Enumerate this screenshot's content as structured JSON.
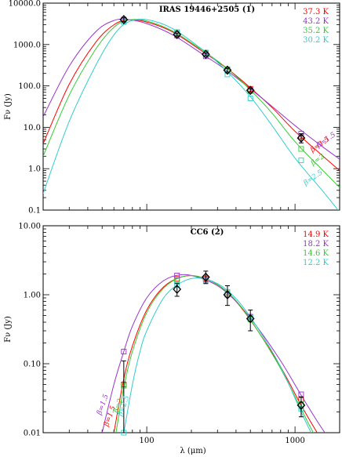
{
  "chart_data": [
    {
      "type": "line",
      "title": "IRAS 19446+2505 (1)",
      "ylabel": "Fν (Jy)",
      "xlabel": "",
      "xscale": "log",
      "yscale": "log",
      "xlim": [
        20,
        2000
      ],
      "ylim": [
        0.1,
        10000
      ],
      "yticks": [
        "0.1",
        "1.0",
        "10.0",
        "100.0",
        "1000.0",
        "10000.0"
      ],
      "legend_position": "top-right",
      "legend": [
        {
          "label": "37.3 K",
          "color": "#ff0000"
        },
        {
          "label": "43.2 K",
          "color": "#9933cc"
        },
        {
          "label": "35.2 K",
          "color": "#33cc33"
        },
        {
          "label": "30.2 K",
          "color": "#33cccc"
        }
      ],
      "series": [
        {
          "color": "#ff0000",
          "x": [
            20,
            30,
            45,
            60,
            75,
            100,
            150,
            250,
            350,
            500,
            700,
            1000,
            1500,
            2000
          ],
          "y": [
            4,
            110,
            1100,
            3000,
            3900,
            3500,
            2000,
            600,
            260,
            90,
            30,
            8,
            2.2,
            0.9
          ]
        },
        {
          "color": "#9933cc",
          "x": [
            20,
            30,
            45,
            60,
            75,
            100,
            150,
            250,
            350,
            500,
            700,
            1000,
            1500,
            2000
          ],
          "y": [
            18,
            300,
            2000,
            3800,
            4000,
            3200,
            1700,
            520,
            230,
            85,
            32,
            11,
            3.6,
            1.7
          ]
        },
        {
          "color": "#33cc33",
          "x": [
            20,
            30,
            45,
            60,
            75,
            100,
            150,
            250,
            350,
            500,
            700,
            1000,
            1500,
            2000
          ],
          "y": [
            2,
            60,
            750,
            2600,
            3900,
            3700,
            2100,
            640,
            260,
            80,
            22,
            4.5,
            1.0,
            0.35
          ]
        },
        {
          "color": "#33cccc",
          "x": [
            20,
            30,
            45,
            60,
            75,
            100,
            150,
            250,
            350,
            500,
            700,
            1000,
            1500,
            2000
          ],
          "y": [
            0.25,
            14,
            300,
            1700,
            3500,
            4000,
            2400,
            650,
            220,
            55,
            11,
            1.8,
            0.32,
            0.09
          ]
        }
      ],
      "points": [
        {
          "x": 70,
          "y": 4000,
          "err": [
            3600,
            4400
          ],
          "model_y": {
            "#ff0000": 4000,
            "#9933cc": 4000,
            "#33cc33": 3800,
            "#33cccc": 3500
          }
        },
        {
          "x": 160,
          "y": 1750,
          "err": [
            1600,
            1900
          ],
          "model_y": {
            "#ff0000": 1800,
            "#9933cc": 1650,
            "#33cc33": 1900,
            "#33cccc": 2000
          }
        },
        {
          "x": 250,
          "y": 580,
          "err": [
            530,
            630
          ],
          "model_y": {
            "#ff0000": 600,
            "#9933cc": 520,
            "#33cc33": 640,
            "#33cccc": 620
          }
        },
        {
          "x": 350,
          "y": 240,
          "err": [
            215,
            265
          ],
          "model_y": {
            "#ff0000": 250,
            "#9933cc": 230,
            "#33cc33": 240,
            "#33cccc": 190
          }
        },
        {
          "x": 500,
          "y": 78,
          "err": [
            70,
            86
          ],
          "model_y": {
            "#ff0000": 85,
            "#9933cc": 80,
            "#33cc33": 75,
            "#33cccc": 50
          }
        },
        {
          "x": 1100,
          "y": 5.5,
          "err": [
            4.2,
            7
          ],
          "model_y": {
            "#ff0000": 6,
            "#9933cc": 7,
            "#33cc33": 3,
            "#33cccc": 1.6
          }
        }
      ],
      "beta_labels": [
        {
          "text": "β=1.5",
          "color": "#9933cc",
          "x": 1650,
          "y": 4.5
        },
        {
          "text": "β=1.5",
          "color": "#ff0000",
          "x": 1500,
          "y": 3.5
        },
        {
          "text": "β=2",
          "color": "#33cc33",
          "x": 1450,
          "y": 1.5
        },
        {
          "text": "β=2.5",
          "color": "#33cccc",
          "x": 1350,
          "y": 0.55
        }
      ]
    },
    {
      "type": "line",
      "title": "CC6 (2)",
      "ylabel": "Fν (Jy)",
      "xlabel": "λ (μm)",
      "xscale": "log",
      "yscale": "log",
      "xlim": [
        20,
        2000
      ],
      "ylim": [
        0.01,
        10
      ],
      "xticks": [
        "100",
        "1000"
      ],
      "yticks": [
        "0.01",
        "0.10",
        "1.00",
        "10.00"
      ],
      "legend_position": "top-right",
      "legend": [
        {
          "label": "14.9 K",
          "color": "#ff0000"
        },
        {
          "label": "18.2 K",
          "color": "#9933cc"
        },
        {
          "label": "14.6 K",
          "color": "#33cc33"
        },
        {
          "label": "12.2 K",
          "color": "#33cccc"
        }
      ],
      "series": [
        {
          "color": "#ff0000",
          "x": [
            60,
            70,
            80,
            100,
            130,
            170,
            220,
            300,
            400,
            550,
            800,
            1100,
            1500
          ],
          "y": [
            0.01,
            0.06,
            0.18,
            0.6,
            1.3,
            1.8,
            1.85,
            1.4,
            0.8,
            0.32,
            0.09,
            0.025,
            0.008
          ]
        },
        {
          "color": "#9933cc",
          "x": [
            50,
            60,
            70,
            80,
            100,
            130,
            170,
            220,
            300,
            400,
            550,
            800,
            1100,
            1500,
            2000
          ],
          "y": [
            0.01,
            0.05,
            0.15,
            0.35,
            0.9,
            1.6,
            1.95,
            1.8,
            1.35,
            0.8,
            0.35,
            0.11,
            0.035,
            0.012,
            0.005
          ]
        },
        {
          "color": "#33cc33",
          "x": [
            62,
            70,
            80,
            100,
            130,
            170,
            220,
            300,
            400,
            550,
            800,
            1100,
            1500
          ],
          "y": [
            0.01,
            0.045,
            0.15,
            0.55,
            1.25,
            1.8,
            1.85,
            1.4,
            0.82,
            0.32,
            0.085,
            0.022,
            0.006
          ]
        },
        {
          "color": "#33cccc",
          "x": [
            70,
            80,
            90,
            100,
            130,
            170,
            220,
            300,
            400,
            550,
            800,
            1100,
            1500
          ],
          "y": [
            0.01,
            0.05,
            0.15,
            0.3,
            0.9,
            1.5,
            1.75,
            1.45,
            0.88,
            0.35,
            0.09,
            0.02,
            0.005
          ]
        }
      ],
      "points": [
        {
          "x": 160,
          "y": 1.2,
          "err": [
            0.95,
            1.45
          ],
          "model_y": {
            "#ff0000": 1.7,
            "#9933cc": 1.9,
            "#33cc33": 1.6,
            "#33cccc": 1.4
          }
        },
        {
          "x": 250,
          "y": 1.8,
          "err": [
            1.45,
            2.2
          ],
          "model_y": {
            "#ff0000": 1.7,
            "#9933cc": 1.65,
            "#33cc33": 1.75,
            "#33cccc": 1.6
          }
        },
        {
          "x": 350,
          "y": 1.0,
          "err": [
            0.7,
            1.35
          ],
          "model_y": {
            "#ff0000": 1.05,
            "#9933cc": 1.0,
            "#33cc33": 1.05,
            "#33cccc": 1.1
          }
        },
        {
          "x": 500,
          "y": 0.45,
          "err": [
            0.3,
            0.6
          ],
          "model_y": {
            "#ff0000": 0.45,
            "#9933cc": 0.48,
            "#33cc33": 0.44,
            "#33cccc": 0.47
          }
        },
        {
          "x": 1100,
          "y": 0.025,
          "err": [
            0.017,
            0.033
          ],
          "model_y": {
            "#ff0000": 0.03,
            "#9933cc": 0.036,
            "#33cc33": 0.026,
            "#33cccc": 0.022
          }
        },
        {
          "x": 70,
          "y": 0.05,
          "err": [
            0.01,
            0.11
          ],
          "nomarker": true,
          "model_y": {
            "#ff0000": 0.05,
            "#9933cc": 0.15,
            "#33cc33": 0.048,
            "#33cccc": 0.01
          }
        }
      ],
      "beta_labels": [
        {
          "text": "β=1.5",
          "color": "#9933cc",
          "x": 52,
          "y": 0.025
        },
        {
          "text": "β=1.5",
          "color": "#ff0000",
          "x": 58,
          "y": 0.017
        },
        {
          "text": "β=2",
          "color": "#33cc33",
          "x": 66,
          "y": 0.024
        },
        {
          "text": "β=2.5",
          "color": "#33cccc",
          "x": 72,
          "y": 0.024
        }
      ]
    }
  ]
}
